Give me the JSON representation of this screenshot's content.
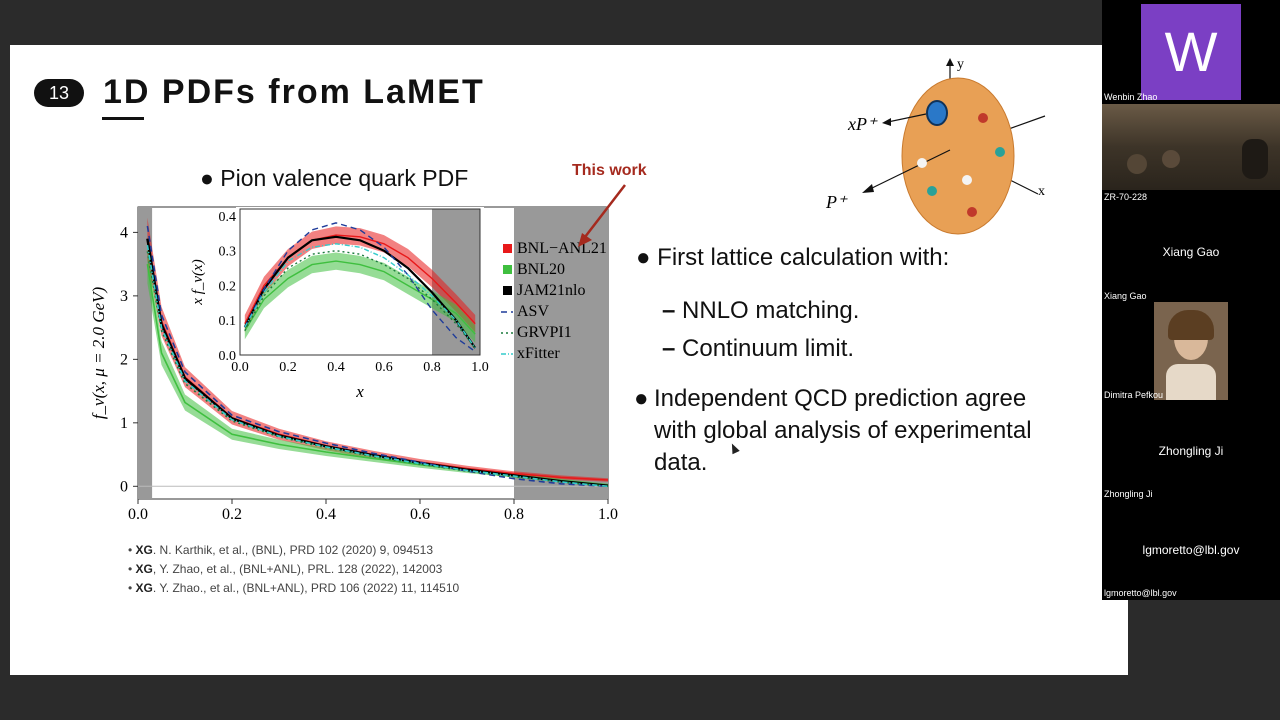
{
  "slide": {
    "number": "13",
    "title": "1D PDFs from LaMET",
    "chart_caption": "Pion valence quark PDF",
    "annotation": "This work",
    "bullets": [
      "First lattice calculation with:",
      "Independent QCD prediction agree with global analysis of experimental data."
    ],
    "bullet2_lines": [
      "Independent QCD prediction agree",
      "with global analysis of experimental",
      "data."
    ],
    "sub_items": [
      "NNLO matching.",
      "Continuum limit."
    ],
    "references": [
      {
        "author": "XG",
        "text": ". N. Karthik, et al., (BNL), PRD 102 (2020) 9, 094513"
      },
      {
        "author": "XG",
        "text": ", Y. Zhao, et al., (BNL+ANL), PRL. 128 (2022), 142003"
      },
      {
        "author": "XG",
        "text": ". Y. Zhao., et al., (BNL+ANL), PRD 106 (2022) 11, 114510"
      }
    ],
    "diagram": {
      "xP": "xP⁺",
      "P": "P⁺",
      "y": "y",
      "x": "x"
    }
  },
  "participants": {
    "avatar_letter": "W",
    "tiles": [
      {
        "name": "Wenbin Zhao"
      },
      {
        "name": "ZR-70-228"
      },
      {
        "name": "Xiang Gao",
        "center": "Xiang Gao"
      },
      {
        "name": "Dimitra Pefkou"
      },
      {
        "name": "Zhongling Ji",
        "center": "Zhongling Ji"
      },
      {
        "name": "lgmoretto@lbl.gov",
        "center": "lgmoretto@lbl.gov"
      }
    ]
  },
  "chart_data": [
    {
      "type": "line",
      "xlabel": "",
      "ylabel": "f_v(x, μ = 2.0 GeV)",
      "xlim": [
        0.0,
        1.0
      ],
      "ylim": [
        -0.2,
        4.4
      ],
      "xticks": [
        "0.0",
        "0.2",
        "0.4",
        "0.6",
        "0.8",
        "1.0"
      ],
      "yticks": [
        "0",
        "1",
        "2",
        "3",
        "4"
      ],
      "x": [
        0.02,
        0.05,
        0.1,
        0.2,
        0.3,
        0.4,
        0.5,
        0.6,
        0.7,
        0.8,
        0.9,
        1.0
      ],
      "series": [
        {
          "name": "BNL−ANL21",
          "color": "#e8191a",
          "values": [
            3.9,
            2.6,
            1.72,
            1.08,
            0.82,
            0.64,
            0.5,
            0.38,
            0.28,
            0.2,
            0.14,
            0.1
          ]
        },
        {
          "name": "BNL20",
          "color": "#3fbf3f",
          "values": [
            3.5,
            2.1,
            1.32,
            0.82,
            0.66,
            0.54,
            0.44,
            0.34,
            0.25,
            0.17,
            0.09,
            0.02
          ]
        },
        {
          "name": "JAM21nlo",
          "color": "#000000",
          "values": [
            3.9,
            2.55,
            1.7,
            1.07,
            0.8,
            0.63,
            0.49,
            0.37,
            0.26,
            0.17,
            0.08,
            0.01
          ]
        },
        {
          "name": "ASV",
          "color": "#1f3c9a",
          "values": [
            4.1,
            2.7,
            1.8,
            1.12,
            0.86,
            0.68,
            0.52,
            0.38,
            0.24,
            0.12,
            0.04,
            0.0
          ]
        },
        {
          "name": "GRVPI1",
          "color": "#1a7a3c",
          "values": [
            3.7,
            2.45,
            1.62,
            1.03,
            0.78,
            0.61,
            0.47,
            0.35,
            0.24,
            0.15,
            0.07,
            0.0
          ]
        },
        {
          "name": "xFitter",
          "color": "#33cccc",
          "values": [
            3.8,
            2.5,
            1.66,
            1.05,
            0.79,
            0.62,
            0.48,
            0.36,
            0.25,
            0.16,
            0.07,
            0.0
          ]
        }
      ]
    },
    {
      "type": "line",
      "xlabel": "x",
      "ylabel": "x f_v(x)",
      "xlim": [
        0.0,
        1.0
      ],
      "ylim": [
        0.0,
        0.42
      ],
      "xticks": [
        "0.0",
        "0.2",
        "0.4",
        "0.6",
        "0.8",
        "1.0"
      ],
      "yticks": [
        "0.0",
        "0.1",
        "0.2",
        "0.3",
        "0.4"
      ],
      "x": [
        0.02,
        0.1,
        0.2,
        0.3,
        0.4,
        0.5,
        0.6,
        0.7,
        0.8,
        0.9,
        0.98
      ],
      "series": [
        {
          "name": "BNL−ANL21",
          "values": [
            0.09,
            0.2,
            0.28,
            0.33,
            0.345,
            0.34,
            0.32,
            0.28,
            0.22,
            0.15,
            0.09
          ]
        },
        {
          "name": "BNL20",
          "values": [
            0.07,
            0.16,
            0.22,
            0.26,
            0.27,
            0.26,
            0.24,
            0.2,
            0.16,
            0.12,
            0.06
          ]
        },
        {
          "name": "JAM21nlo",
          "values": [
            0.08,
            0.19,
            0.28,
            0.33,
            0.34,
            0.33,
            0.3,
            0.25,
            0.18,
            0.1,
            0.02
          ]
        },
        {
          "name": "ASV",
          "values": [
            0.08,
            0.19,
            0.3,
            0.36,
            0.38,
            0.36,
            0.31,
            0.23,
            0.13,
            0.05,
            0.01
          ]
        },
        {
          "name": "GRVPI1",
          "values": [
            0.07,
            0.17,
            0.25,
            0.29,
            0.3,
            0.29,
            0.26,
            0.22,
            0.16,
            0.09,
            0.02
          ]
        },
        {
          "name": "xFitter",
          "values": [
            0.08,
            0.18,
            0.27,
            0.31,
            0.32,
            0.31,
            0.28,
            0.23,
            0.17,
            0.1,
            0.02
          ]
        }
      ]
    }
  ]
}
